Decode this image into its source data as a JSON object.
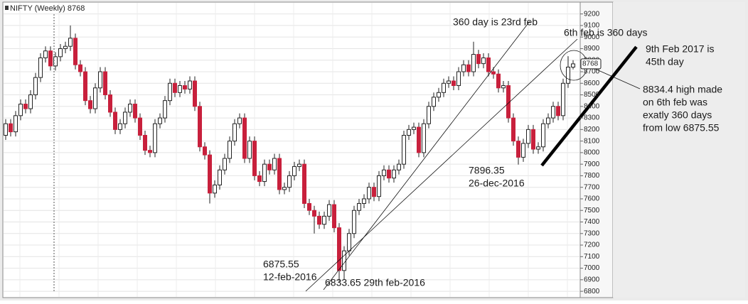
{
  "chart_data": {
    "type": "candlestick",
    "title": "NIFTY (Weekly) 8768",
    "up_color": "#ffffff",
    "down_color": "#c8203c",
    "grid": true,
    "ylim": [
      6770,
      9290
    ],
    "yticks": [
      6800,
      6900,
      7000,
      7100,
      7200,
      7300,
      7400,
      7500,
      7600,
      7700,
      7800,
      7900,
      8000,
      8100,
      8200,
      8300,
      8400,
      8500,
      8600,
      8700,
      8800,
      8900,
      9000,
      9100,
      9200
    ],
    "ohlc": [
      [
        8150,
        8290,
        8110,
        8250
      ],
      [
        8250,
        8290,
        8140,
        8180
      ],
      [
        8180,
        8360,
        8140,
        8320
      ],
      [
        8320,
        8460,
        8280,
        8420
      ],
      [
        8420,
        8460,
        8340,
        8380
      ],
      [
        8380,
        8540,
        8340,
        8500
      ],
      [
        8500,
        8690,
        8460,
        8650
      ],
      [
        8650,
        8860,
        8610,
        8820
      ],
      [
        8820,
        8920,
        8780,
        8880
      ],
      [
        8880,
        8920,
        8710,
        8750
      ],
      [
        8750,
        8870,
        8710,
        8830
      ],
      [
        8830,
        8940,
        8790,
        8900
      ],
      [
        8900,
        8960,
        8860,
        8920
      ],
      [
        8920,
        9100,
        8880,
        8990
      ],
      [
        8990,
        9030,
        8720,
        8760
      ],
      [
        8760,
        8800,
        8660,
        8700
      ],
      [
        8700,
        8740,
        8410,
        8450
      ],
      [
        8450,
        8490,
        8340,
        8380
      ],
      [
        8380,
        8600,
        8340,
        8560
      ],
      [
        8560,
        8740,
        8520,
        8700
      ],
      [
        8700,
        8740,
        8460,
        8500
      ],
      [
        8500,
        8540,
        8310,
        8350
      ],
      [
        8350,
        8390,
        8160,
        8200
      ],
      [
        8200,
        8290,
        8160,
        8250
      ],
      [
        8250,
        8390,
        8210,
        8350
      ],
      [
        8350,
        8460,
        8310,
        8420
      ],
      [
        8420,
        8460,
        8260,
        8300
      ],
      [
        8300,
        8340,
        8110,
        8150
      ],
      [
        8150,
        8190,
        7980,
        8020
      ],
      [
        8020,
        8060,
        7960,
        8000
      ],
      [
        8000,
        8290,
        7960,
        8250
      ],
      [
        8250,
        8340,
        8210,
        8300
      ],
      [
        8300,
        8490,
        8260,
        8450
      ],
      [
        8450,
        8640,
        8410,
        8600
      ],
      [
        8600,
        8640,
        8480,
        8520
      ],
      [
        8520,
        8620,
        8480,
        8580
      ],
      [
        8580,
        8620,
        8510,
        8550
      ],
      [
        8550,
        8660,
        8510,
        8620
      ],
      [
        8620,
        8660,
        8360,
        8400
      ],
      [
        8400,
        8440,
        8010,
        8050
      ],
      [
        8050,
        8090,
        7940,
        7980
      ],
      [
        7980,
        8020,
        7560,
        7650
      ],
      [
        7650,
        7760,
        7610,
        7720
      ],
      [
        7720,
        7890,
        7680,
        7850
      ],
      [
        7850,
        7990,
        7810,
        7950
      ],
      [
        7950,
        8140,
        7910,
        8100
      ],
      [
        8100,
        8290,
        8060,
        8250
      ],
      [
        8250,
        8340,
        8210,
        8300
      ],
      [
        8300,
        8340,
        7910,
        7950
      ],
      [
        7950,
        8140,
        7910,
        8100
      ],
      [
        8100,
        8140,
        7760,
        7800
      ],
      [
        7800,
        7840,
        7710,
        7750
      ],
      [
        7750,
        7940,
        7710,
        7900
      ],
      [
        7900,
        7940,
        7810,
        7850
      ],
      [
        7850,
        7990,
        7810,
        7950
      ],
      [
        7950,
        7990,
        7640,
        7680
      ],
      [
        7680,
        7740,
        7640,
        7700
      ],
      [
        7700,
        7840,
        7660,
        7800
      ],
      [
        7800,
        7920,
        7760,
        7880
      ],
      [
        7880,
        7940,
        7840,
        7900
      ],
      [
        7900,
        7940,
        7520,
        7560
      ],
      [
        7560,
        7600,
        7460,
        7500
      ],
      [
        7500,
        7540,
        7300,
        7450
      ],
      [
        7450,
        7490,
        7340,
        7380
      ],
      [
        7380,
        7490,
        7340,
        7450
      ],
      [
        7450,
        7590,
        7410,
        7550
      ],
      [
        7550,
        7590,
        7310,
        7350
      ],
      [
        7350,
        7390,
        6875.55,
        6980
      ],
      [
        6980,
        7190,
        6900,
        7150
      ],
      [
        7150,
        7340,
        7110,
        7300
      ],
      [
        7300,
        7540,
        7260,
        7500
      ],
      [
        7500,
        7600,
        7460,
        7560
      ],
      [
        7560,
        7640,
        7520,
        7600
      ],
      [
        7600,
        7740,
        7560,
        7700
      ],
      [
        7700,
        7740,
        7580,
        7620
      ],
      [
        7620,
        7840,
        7580,
        7800
      ],
      [
        7800,
        7890,
        7760,
        7850
      ],
      [
        7850,
        7890,
        7740,
        7780
      ],
      [
        7780,
        7890,
        7740,
        7850
      ],
      [
        7850,
        7940,
        7810,
        7900
      ],
      [
        7900,
        8190,
        7860,
        8150
      ],
      [
        8150,
        8240,
        8110,
        8200
      ],
      [
        8200,
        8260,
        8160,
        8220
      ],
      [
        8220,
        8260,
        7960,
        8000
      ],
      [
        8000,
        8290,
        7960,
        8250
      ],
      [
        8250,
        8440,
        8210,
        8400
      ],
      [
        8400,
        8520,
        8360,
        8480
      ],
      [
        8480,
        8560,
        8440,
        8520
      ],
      [
        8520,
        8640,
        8480,
        8600
      ],
      [
        8600,
        8660,
        8560,
        8620
      ],
      [
        8620,
        8660,
        8540,
        8580
      ],
      [
        8580,
        8740,
        8540,
        8700
      ],
      [
        8700,
        8800,
        8660,
        8760
      ],
      [
        8760,
        8800,
        8660,
        8700
      ],
      [
        8700,
        8960,
        8660,
        8850
      ],
      [
        8850,
        8890,
        8730,
        8770
      ],
      [
        8770,
        8860,
        8730,
        8820
      ],
      [
        8820,
        8860,
        8660,
        8700
      ],
      [
        8700,
        8740,
        8640,
        8680
      ],
      [
        8680,
        8720,
        8520,
        8560
      ],
      [
        8560,
        8620,
        8520,
        8580
      ],
      [
        8580,
        8620,
        8260,
        8300
      ],
      [
        8300,
        8340,
        8060,
        8100
      ],
      [
        8100,
        8140,
        7896.35,
        7960
      ],
      [
        7960,
        8120,
        7920,
        8080
      ],
      [
        8080,
        8240,
        8040,
        8200
      ],
      [
        8200,
        8240,
        7990,
        8030
      ],
      [
        8030,
        8090,
        7990,
        8050
      ],
      [
        8050,
        8290,
        8010,
        8250
      ],
      [
        8250,
        8340,
        8210,
        8300
      ],
      [
        8300,
        8440,
        8260,
        8400
      ],
      [
        8400,
        8440,
        8280,
        8320
      ],
      [
        8320,
        8640,
        8280,
        8600
      ],
      [
        8600,
        8834.4,
        8560,
        8740
      ],
      [
        8740,
        8800,
        8720,
        8768
      ]
    ],
    "annotations": [
      [
        "360 day is 23rd feb"
      ],
      [
        "6th feb is 360 days"
      ],
      [
        "9th Feb 2017 is",
        "45th day"
      ],
      [
        "8834.4 high made",
        "on 6th feb was",
        "exatly 360 days",
        "from low 6875.55"
      ],
      [
        "7896.35",
        "26-dec-2016"
      ],
      [
        "6875.55",
        "12-feb-2016"
      ],
      [
        "6833.65 29th feb-2016"
      ]
    ]
  }
}
